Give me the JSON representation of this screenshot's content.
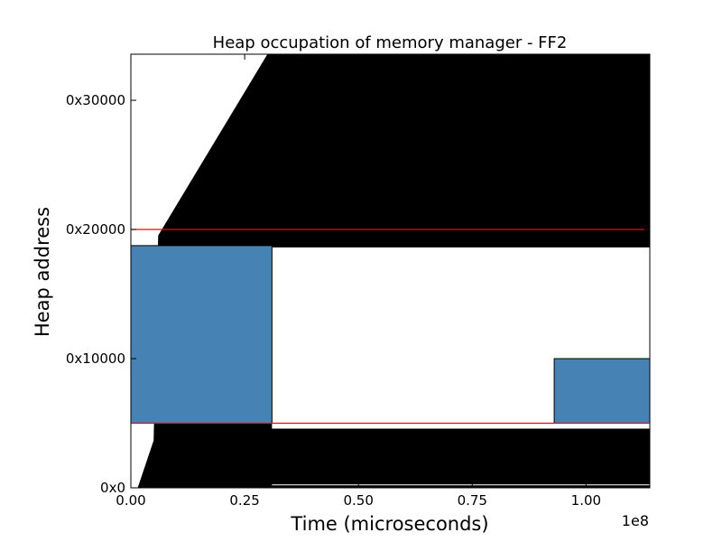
{
  "chart_data": {
    "type": "area",
    "title": "Heap occupation of memory manager - FF2",
    "xlabel": "Time (microseconds)",
    "ylabel": "Heap address",
    "x_offset_label": "1e8",
    "xlim": [
      0,
      1.14
    ],
    "ylim": [
      0,
      220000
    ],
    "grid": false,
    "legend": "none",
    "x_ticks": [
      {
        "value": 0.0,
        "label": "0.00"
      },
      {
        "value": 0.25,
        "label": "0.25"
      },
      {
        "value": 0.5,
        "label": "0.50"
      },
      {
        "value": 0.75,
        "label": "0.75"
      },
      {
        "value": 1.0,
        "label": "1.00"
      }
    ],
    "y_ticks": [
      {
        "value": 0,
        "label": "0x0"
      },
      {
        "value": 65536,
        "label": "0x10000"
      },
      {
        "value": 131072,
        "label": "0x20000"
      },
      {
        "value": 196608,
        "label": "0x30000"
      }
    ],
    "occupied_region": {
      "color": "#000000",
      "boundary": [
        [
          0.0,
          0
        ],
        [
          0.015,
          0
        ],
        [
          0.05,
          24000
        ],
        [
          0.06,
          128000
        ],
        [
          0.3,
          220000
        ],
        [
          1.14,
          220000
        ]
      ],
      "clear_band": [
        [
          0.31,
          30000
        ],
        [
          1.14,
          30000
        ],
        [
          1.14,
          122000
        ],
        [
          0.31,
          122000
        ]
      ]
    },
    "blocks": [
      {
        "x0": 0.0,
        "x1": 0.31,
        "y0": 32768,
        "y1": 122880,
        "color": "#4682b4"
      },
      {
        "x0": 0.93,
        "x1": 1.14,
        "y0": 32768,
        "y1": 65536,
        "color": "#4682b4"
      }
    ],
    "limit_lines": [
      {
        "y": 32768,
        "color": "#ff0000"
      },
      {
        "y": 131072,
        "color": "#ff0000"
      }
    ]
  }
}
